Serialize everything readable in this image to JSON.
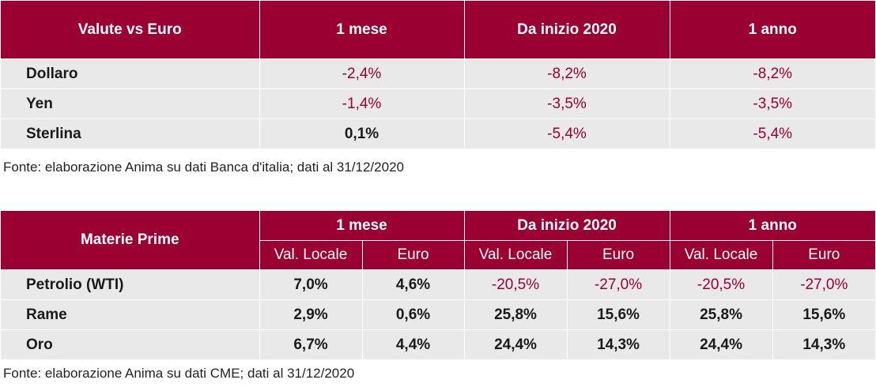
{
  "table1": {
    "headers": [
      "Valute vs Euro",
      "1 mese",
      "Da inizio 2020",
      "1 anno"
    ],
    "rows": [
      {
        "label": "Dollaro",
        "values": [
          "-2,4%",
          "-8,2%",
          "-8,2%"
        ]
      },
      {
        "label": "Yen",
        "values": [
          "-1,4%",
          "-3,5%",
          "-3,5%"
        ]
      },
      {
        "label": "Sterlina",
        "values": [
          "0,1%",
          "-5,4%",
          "-5,4%"
        ]
      }
    ],
    "source": "Fonte: elaborazione Anima su dati Banca d'italia; dati al 31/12/2020"
  },
  "table2": {
    "corner": "Materie Prime",
    "groups": [
      "1 mese",
      "Da inizio 2020",
      "1 anno"
    ],
    "subheaders": [
      "Val. Locale",
      "Euro",
      "Val. Locale",
      "Euro",
      "Val. Locale",
      "Euro"
    ],
    "rows": [
      {
        "label": "Petrolio (WTI)",
        "values": [
          "7,0%",
          "4,6%",
          "-20,5%",
          "-27,0%",
          "-20,5%",
          "-27,0%"
        ]
      },
      {
        "label": "Rame",
        "values": [
          "2,9%",
          "0,6%",
          "25,8%",
          "15,6%",
          "25,8%",
          "15,6%"
        ]
      },
      {
        "label": "Oro",
        "values": [
          "6,7%",
          "4,4%",
          "24,4%",
          "14,3%",
          "24,4%",
          "14,3%"
        ]
      }
    ],
    "source": "Fonte: elaborazione Anima su dati CME; dati al 31/12/2020"
  },
  "colors": {
    "header_bg": "#9b0033",
    "row_bg": "#e9e9e9",
    "negative": "#9b0033"
  }
}
